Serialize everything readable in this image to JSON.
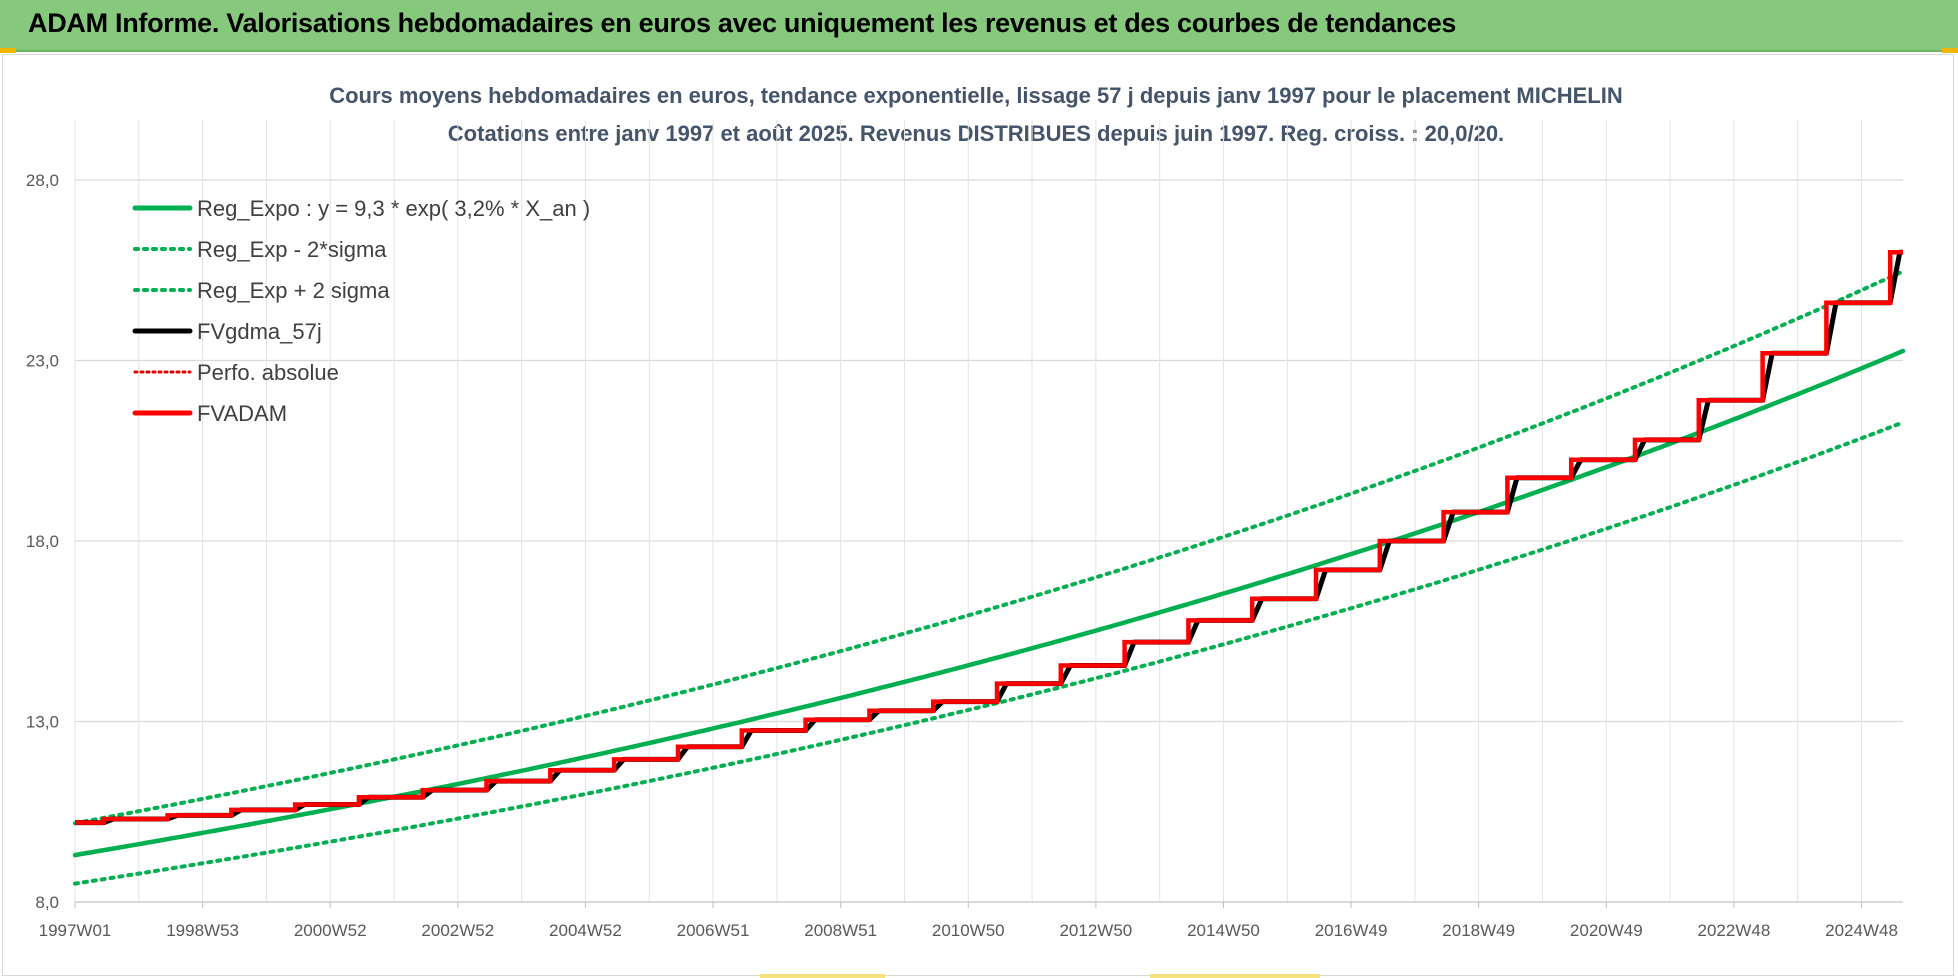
{
  "header": {
    "title": "ADAM Informe. Valorisations hebdomadaires en euros avec uniquement les revenus et des courbes de tendances"
  },
  "chart_data": {
    "type": "line",
    "title": "Cours moyens hebdomadaires en euros, tendance exponentielle, lissage 57 j depuis janv 1997 pour le placement MICHELIN",
    "subtitle": "Cotations entre janv 1997 et août 2025.  Revenus DISTRIBUES depuis juin 1997.  Reg. croiss. : 20,0/20.",
    "xlabel": "",
    "ylabel": "",
    "ylim": [
      8.0,
      28.0
    ],
    "y_ticks": [
      "8,0",
      "13,0",
      "18,0",
      "23,0",
      "28,0"
    ],
    "y_tick_values": [
      8,
      13,
      18,
      23,
      28
    ],
    "x_ticks": [
      "1997W01",
      "1998W53",
      "2000W52",
      "2002W52",
      "2004W52",
      "2006W51",
      "2008W51",
      "2010W50",
      "2012W50",
      "2014W50",
      "2016W49",
      "2018W49",
      "2020W49",
      "2022W48",
      "2024W48"
    ],
    "xlim": [
      1997.0,
      2025.65
    ],
    "grid": true,
    "legend_position": "top-left",
    "series": [
      {
        "name": "Reg_Expo : y = 9,3 * exp( 3,2% *  X_an )",
        "color": "#00b050",
        "style": "solid",
        "kind": "expo",
        "a": 9.3,
        "r": 0.032,
        "factor": 1.0
      },
      {
        "name": "Reg_Exp - 2*sigma",
        "color": "#00b050",
        "style": "dotted",
        "kind": "expo",
        "a": 9.3,
        "r": 0.032,
        "factor": 0.915
      },
      {
        "name": "Reg_Exp + 2 sigma",
        "color": "#00b050",
        "style": "dotted",
        "kind": "expo",
        "a": 9.3,
        "r": 0.032,
        "factor": 1.095
      },
      {
        "name": "FVgdma_57j",
        "color": "#000000",
        "style": "solid",
        "kind": "smooth",
        "of": "FVADAM"
      },
      {
        "name": "Perfo. absolue",
        "color": "#e00000",
        "style": "dotted",
        "kind": "none"
      },
      {
        "name": "FVADAM",
        "color": "#ff0000",
        "style": "step",
        "steps": [
          {
            "x": 1997.0,
            "y": 10.2
          },
          {
            "x": 1997.45,
            "y": 10.3
          },
          {
            "x": 1998.45,
            "y": 10.4
          },
          {
            "x": 1999.45,
            "y": 10.55
          },
          {
            "x": 2000.45,
            "y": 10.7
          },
          {
            "x": 2001.45,
            "y": 10.9
          },
          {
            "x": 2002.45,
            "y": 11.1
          },
          {
            "x": 2003.45,
            "y": 11.35
          },
          {
            "x": 2004.45,
            "y": 11.65
          },
          {
            "x": 2005.45,
            "y": 11.95
          },
          {
            "x": 2006.45,
            "y": 12.3
          },
          {
            "x": 2007.45,
            "y": 12.75
          },
          {
            "x": 2008.45,
            "y": 13.05
          },
          {
            "x": 2009.45,
            "y": 13.3
          },
          {
            "x": 2010.45,
            "y": 13.55
          },
          {
            "x": 2011.45,
            "y": 14.05
          },
          {
            "x": 2012.45,
            "y": 14.55
          },
          {
            "x": 2013.45,
            "y": 15.2
          },
          {
            "x": 2014.45,
            "y": 15.8
          },
          {
            "x": 2015.45,
            "y": 16.4
          },
          {
            "x": 2016.45,
            "y": 17.2
          },
          {
            "x": 2017.45,
            "y": 18.0
          },
          {
            "x": 2018.45,
            "y": 18.8
          },
          {
            "x": 2019.45,
            "y": 19.75
          },
          {
            "x": 2020.45,
            "y": 20.25
          },
          {
            "x": 2021.45,
            "y": 20.8
          },
          {
            "x": 2022.45,
            "y": 21.9
          },
          {
            "x": 2023.45,
            "y": 23.2
          },
          {
            "x": 2024.45,
            "y": 24.6
          },
          {
            "x": 2025.45,
            "y": 26.0
          }
        ],
        "x_end": 2025.65
      }
    ]
  },
  "colors": {
    "banner": "#86c97c",
    "grid": "#d9d9d9",
    "title": "#44546a"
  }
}
